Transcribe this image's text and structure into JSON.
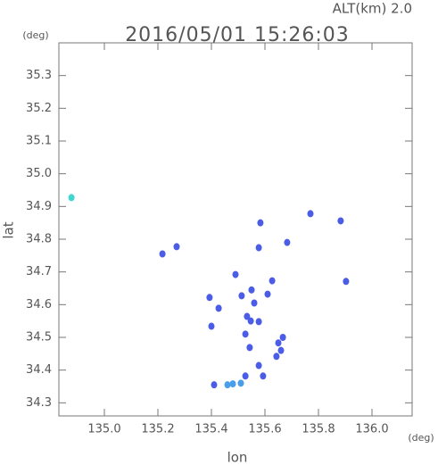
{
  "chart_data": {
    "type": "scatter",
    "title": "2016/05/01 15:26:03",
    "subtitle": "ALT(km) 2.0",
    "x_label": "lon",
    "y_label": "lat",
    "x_unit": "(deg)",
    "y_unit": "(deg)",
    "xlim": [
      134.83,
      136.15
    ],
    "ylim": [
      34.26,
      35.4
    ],
    "xticks": [
      {
        "value": 135,
        "label": "135.0"
      },
      135.2,
      135.4,
      135.6,
      135.8,
      {
        "value": 136,
        "label": "136.0"
      }
    ],
    "yticks": [
      34.3,
      34.4,
      34.5,
      34.6,
      34.7,
      34.8,
      34.9,
      {
        "value": 35,
        "label": "35.0"
      },
      35.1,
      35.2,
      35.3
    ],
    "series": [
      {
        "color": "#4b5ce6",
        "x": [
          135.217,
          135.27,
          135.393,
          135.427,
          135.4,
          135.513,
          135.533,
          135.527,
          135.543,
          135.577,
          135.56,
          135.627,
          135.61,
          135.65,
          135.643,
          135.577,
          135.527,
          135.593,
          135.41,
          135.77,
          135.883,
          135.903,
          135.683,
          135.583,
          135.49,
          135.577,
          135.547,
          135.66,
          135.667,
          135.55
        ],
        "values": [
          34.755,
          34.777,
          34.622,
          34.589,
          34.534,
          34.627,
          34.564,
          34.51,
          34.469,
          34.548,
          34.605,
          34.673,
          34.632,
          34.483,
          34.442,
          34.414,
          34.382,
          34.382,
          34.355,
          34.878,
          34.856,
          34.671,
          34.79,
          34.85,
          34.692,
          34.774,
          34.55,
          34.46,
          34.5,
          34.645
        ]
      },
      {
        "color": "#4a9ee8",
        "x": [
          135.46,
          135.48,
          135.51
        ],
        "values": [
          34.355,
          34.358,
          34.36
        ]
      },
      {
        "color": "#3fd6d0",
        "x": [
          134.877
        ],
        "values": [
          34.927
        ]
      }
    ]
  }
}
